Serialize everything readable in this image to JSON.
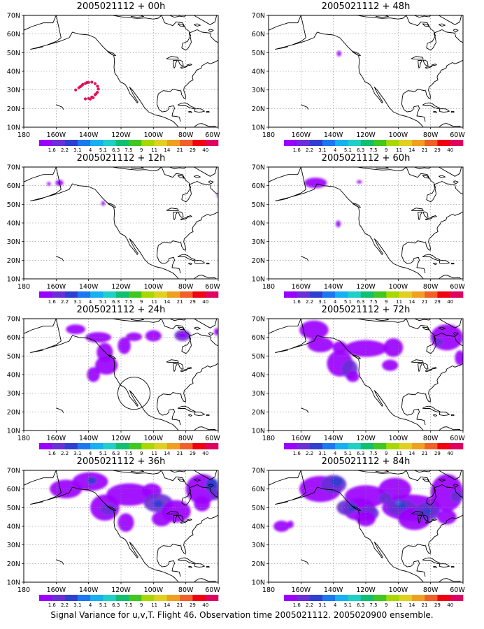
{
  "colors": {
    "scale": [
      "#9b00ff",
      "#6b2fd6",
      "#2f40d0",
      "#1c78f0",
      "#17b0f0",
      "#1ed0c8",
      "#10c070",
      "#40c820",
      "#a8d800",
      "#e0d020",
      "#f0a020",
      "#f06028",
      "#f00010",
      "#e00060"
    ]
  },
  "legend_labels": [
    "1.6",
    "2.2",
    "3.1",
    "4",
    "5.1",
    "6.3",
    "7.5",
    "9",
    "11",
    "14",
    "21",
    "29",
    "40"
  ],
  "x_ticks": [
    "180",
    "160W",
    "140W",
    "120W",
    "100W",
    "80W",
    "60W"
  ],
  "y_ticks": [
    "70N",
    "60N",
    "50N",
    "40N",
    "30N",
    "20N",
    "10N"
  ],
  "caption": "Signal Variance for u,v,T. Flight 46. Observation time 2005021112. 2005020900 ensemble.",
  "panels": [
    {
      "title": "2005021112 + 00h",
      "lead_hours": 0,
      "level": 0
    },
    {
      "title": "2005021112 + 48h",
      "lead_hours": 48,
      "level": 4
    },
    {
      "title": "2005021112 + 12h",
      "lead_hours": 12,
      "level": 1
    },
    {
      "title": "2005021112 + 60h",
      "lead_hours": 60,
      "level": 5
    },
    {
      "title": "2005021112 + 24h",
      "lead_hours": 24,
      "level": 2
    },
    {
      "title": "2005021112 + 72h",
      "lead_hours": 72,
      "level": 6
    },
    {
      "title": "2005021112 + 36h",
      "lead_hours": 36,
      "level": 3
    },
    {
      "title": "2005021112 + 84h",
      "lead_hours": 84,
      "level": 7
    }
  ]
}
